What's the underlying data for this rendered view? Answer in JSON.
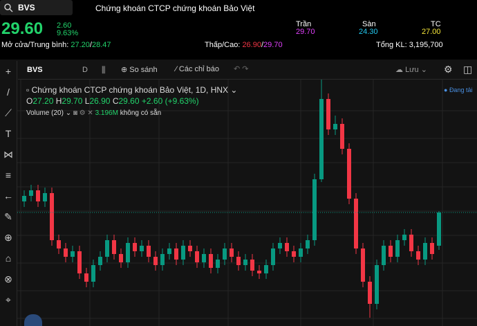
{
  "header": {
    "symbol": "BVS",
    "company": "Chứng khoán CTCP chứng khoán Bảo Việt",
    "price": "29.60",
    "change": "2.60",
    "change_pct": "9.63%",
    "ceiling_label": "Trần",
    "ceiling": "29.70",
    "floor_label": "Sàn",
    "floor": "24.30",
    "ref_label": "TC",
    "ref": "27.00",
    "open_avg_label": "Mở cửa/Trung bình:",
    "open": "27.20",
    "avg": "28.47",
    "lowhigh_label": "Thấp/Cao:",
    "low": "26.90",
    "high": "29.70",
    "volume_label": "Tổng KL:",
    "volume": "3,195,700"
  },
  "toolbar": {
    "symbol": "BVS",
    "interval": "D",
    "compare": "So sánh",
    "indicators": "Các chỉ báo",
    "save": "Lưu"
  },
  "legend": {
    "title": "Chứng khoán CTCP chứng khoán Bảo Việt, 1D, HNX",
    "o_label": "O",
    "o": "27.20",
    "h_label": "H",
    "h": "29.70",
    "l_label": "L",
    "l": "26.90",
    "c_label": "C",
    "c": "29.60",
    "chg": "+2.60 (+9.63%)",
    "volume_label": "Volume (20)",
    "volume_value": "3.196M",
    "volume_note": "không có sẵn",
    "loading": "Đang tải"
  },
  "chart": {
    "candles": [
      [
        30.4,
        31.2,
        30.0,
        30.8
      ],
      [
        30.8,
        31.6,
        30.4,
        31.2
      ],
      [
        31.2,
        31.6,
        30.0,
        30.4
      ],
      [
        30.4,
        31.4,
        30.0,
        31.0
      ],
      [
        31.0,
        31.4,
        27.2,
        27.6
      ],
      [
        27.6,
        28.0,
        26.6,
        27.0
      ],
      [
        27.0,
        27.4,
        26.0,
        26.4
      ],
      [
        26.4,
        27.2,
        26.0,
        26.8
      ],
      [
        26.8,
        27.2,
        24.8,
        25.2
      ],
      [
        25.2,
        25.6,
        24.2,
        24.6
      ],
      [
        24.6,
        26.2,
        24.2,
        25.8
      ],
      [
        25.8,
        26.8,
        25.4,
        26.4
      ],
      [
        26.4,
        28.0,
        26.0,
        27.6
      ],
      [
        27.6,
        28.0,
        26.2,
        26.6
      ],
      [
        26.6,
        27.0,
        25.6,
        26.0
      ],
      [
        26.0,
        27.8,
        25.6,
        27.4
      ],
      [
        27.4,
        27.8,
        26.4,
        26.8
      ],
      [
        26.8,
        27.6,
        26.4,
        27.2
      ],
      [
        27.2,
        27.6,
        26.0,
        26.4
      ],
      [
        26.4,
        26.8,
        25.4,
        25.8
      ],
      [
        25.8,
        27.0,
        25.4,
        26.6
      ],
      [
        26.6,
        27.4,
        26.2,
        27.0
      ],
      [
        27.0,
        27.4,
        25.8,
        26.2
      ],
      [
        26.2,
        27.6,
        25.8,
        27.2
      ],
      [
        27.2,
        27.6,
        26.4,
        26.8
      ],
      [
        26.8,
        27.2,
        25.6,
        26.0
      ],
      [
        26.0,
        27.0,
        25.6,
        26.6
      ],
      [
        26.6,
        27.0,
        25.2,
        25.6
      ],
      [
        25.6,
        26.6,
        25.2,
        26.2
      ],
      [
        26.2,
        27.4,
        25.8,
        27.0
      ],
      [
        27.0,
        27.4,
        26.0,
        26.4
      ],
      [
        26.4,
        26.8,
        25.4,
        25.8
      ],
      [
        25.8,
        26.6,
        25.4,
        26.2
      ],
      [
        26.2,
        26.6,
        25.0,
        25.4
      ],
      [
        25.4,
        25.8,
        24.8,
        25.2
      ],
      [
        25.2,
        26.2,
        24.8,
        25.8
      ],
      [
        25.8,
        27.4,
        25.4,
        27.0
      ],
      [
        27.0,
        27.8,
        26.6,
        27.4
      ],
      [
        27.4,
        27.8,
        26.4,
        26.8
      ],
      [
        26.8,
        27.2,
        26.0,
        26.4
      ],
      [
        26.4,
        27.4,
        26.0,
        27.0
      ],
      [
        27.0,
        28.0,
        26.6,
        27.6
      ],
      [
        27.6,
        32.4,
        27.2,
        32.0
      ],
      [
        32.0,
        39.2,
        31.8,
        37.8
      ],
      [
        37.8,
        38.2,
        35.2,
        35.6
      ],
      [
        35.6,
        36.6,
        35.2,
        36.0
      ],
      [
        36.0,
        36.4,
        33.8,
        34.2
      ],
      [
        34.2,
        34.6,
        30.2,
        30.6
      ],
      [
        30.6,
        31.0,
        26.6,
        27.0
      ],
      [
        27.0,
        27.4,
        24.2,
        24.6
      ],
      [
        24.6,
        25.0,
        22.0,
        23.0
      ],
      [
        23.0,
        26.2,
        22.6,
        25.8
      ],
      [
        25.8,
        27.6,
        25.4,
        27.2
      ],
      [
        27.2,
        27.6,
        26.0,
        26.4
      ],
      [
        26.4,
        28.0,
        26.0,
        27.6
      ],
      [
        27.6,
        28.4,
        27.2,
        28.0
      ],
      [
        28.0,
        28.4,
        26.4,
        26.8
      ],
      [
        26.8,
        27.2,
        25.8,
        26.2
      ],
      [
        26.2,
        27.8,
        25.8,
        27.4
      ],
      [
        27.4,
        27.8,
        26.2,
        26.6
      ],
      [
        27.2,
        29.7,
        26.9,
        29.6
      ]
    ]
  }
}
